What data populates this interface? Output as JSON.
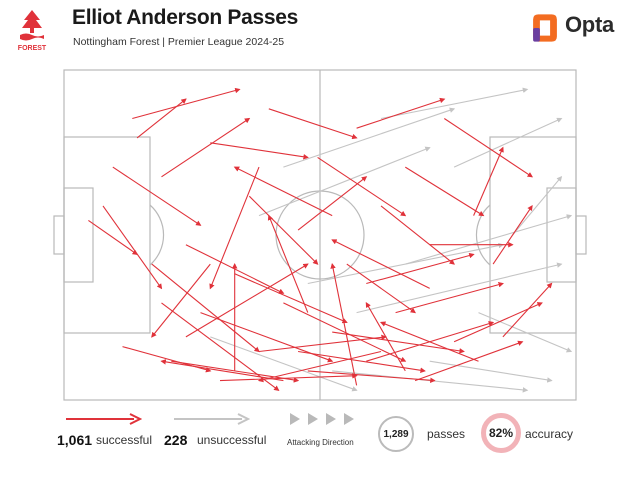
{
  "header": {
    "title": "Elliot Anderson Passes",
    "subtitle": "Nottingham Forest | Premier League 2024-25",
    "brand": "Opta",
    "crest_text": "FOREST"
  },
  "colors": {
    "successful": "#e0323a",
    "unsuccessful": "#c4c4c4",
    "pitch_lines": "#b9b9b9",
    "accuracy_ring": "#f2b3b8",
    "brand_orange": "#f36c21",
    "brand_purple": "#6b3fa0"
  },
  "legend": {
    "successful_count": "1,061",
    "successful_label": "successful",
    "unsuccessful_count": "228",
    "unsuccessful_label": "unsuccessful",
    "direction_label": "Attacking Direction",
    "passes_value": "1,289",
    "passes_label": "passes",
    "accuracy_value": "82%",
    "accuracy_label": "accuracy"
  },
  "chart_data": {
    "type": "pass_map",
    "pitch_length": 105,
    "pitch_width": 68,
    "attacking_direction": "left-to-right",
    "successful": [
      [
        5.0,
        31.0,
        15.0,
        38.0
      ],
      [
        8.0,
        28.0,
        20.0,
        45.0
      ],
      [
        12.0,
        57.0,
        30.0,
        62.0
      ],
      [
        15.0,
        14.0,
        25.0,
        6.0
      ],
      [
        18.0,
        40.0,
        40.0,
        58.0
      ],
      [
        20.0,
        22.0,
        38.0,
        10.0
      ],
      [
        22.0,
        60.0,
        48.0,
        64.0
      ],
      [
        25.0,
        36.0,
        45.0,
        46.0
      ],
      [
        28.0,
        50.0,
        55.0,
        60.0
      ],
      [
        30.0,
        15.0,
        50.0,
        18.0
      ],
      [
        32.0,
        64.0,
        60.0,
        63.0
      ],
      [
        35.0,
        42.0,
        58.0,
        52.0
      ],
      [
        38.0,
        26.0,
        52.0,
        40.0
      ],
      [
        40.0,
        58.0,
        66.0,
        55.0
      ],
      [
        42.0,
        8.0,
        60.0,
        14.0
      ],
      [
        45.0,
        48.0,
        70.0,
        60.0
      ],
      [
        48.0,
        33.0,
        62.0,
        22.0
      ],
      [
        50.0,
        62.0,
        76.0,
        64.0
      ],
      [
        52.0,
        18.0,
        70.0,
        30.0
      ],
      [
        55.0,
        54.0,
        82.0,
        58.0
      ],
      [
        58.0,
        40.0,
        72.0,
        50.0
      ],
      [
        60.0,
        12.0,
        78.0,
        6.0
      ],
      [
        62.0,
        60.0,
        88.0,
        52.0
      ],
      [
        65.0,
        28.0,
        80.0,
        40.0
      ],
      [
        68.0,
        50.0,
        90.0,
        44.0
      ],
      [
        70.0,
        20.0,
        86.0,
        30.0
      ],
      [
        72.0,
        64.0,
        94.0,
        56.0
      ],
      [
        75.0,
        36.0,
        92.0,
        36.0
      ],
      [
        78.0,
        10.0,
        96.0,
        22.0
      ],
      [
        80.0,
        56.0,
        98.0,
        48.0
      ],
      [
        30.0,
        40.0,
        18.0,
        55.0
      ],
      [
        45.0,
        64.0,
        20.0,
        60.0
      ],
      [
        55.0,
        30.0,
        35.0,
        20.0
      ],
      [
        65.0,
        58.0,
        40.0,
        64.0
      ],
      [
        75.0,
        45.0,
        55.0,
        35.0
      ],
      [
        85.0,
        60.0,
        65.0,
        52.0
      ],
      [
        40.0,
        20.0,
        30.0,
        45.0
      ],
      [
        50.0,
        50.0,
        42.0,
        30.0
      ],
      [
        60.0,
        65.0,
        55.0,
        40.0
      ],
      [
        70.0,
        62.0,
        62.0,
        48.0
      ],
      [
        35.0,
        62.0,
        35.0,
        40.0
      ],
      [
        25.0,
        55.0,
        50.0,
        40.0
      ],
      [
        20.0,
        48.0,
        44.0,
        66.0
      ],
      [
        10.0,
        20.0,
        28.0,
        32.0
      ],
      [
        14.0,
        10.0,
        36.0,
        4.0
      ],
      [
        88.0,
        40.0,
        96.0,
        28.0
      ],
      [
        90.0,
        55.0,
        100.0,
        44.0
      ],
      [
        84.0,
        30.0,
        90.0,
        16.0
      ],
      [
        62.0,
        44.0,
        84.0,
        38.0
      ],
      [
        48.0,
        58.0,
        74.0,
        62.0
      ]
    ],
    "unsuccessful": [
      [
        60.0,
        50.0,
        102.0,
        40.0
      ],
      [
        70.0,
        40.0,
        104.0,
        30.0
      ],
      [
        55.0,
        62.0,
        95.0,
        66.0
      ],
      [
        80.0,
        20.0,
        102.0,
        10.0
      ],
      [
        40.0,
        30.0,
        75.0,
        16.0
      ],
      [
        85.0,
        50.0,
        104.0,
        58.0
      ],
      [
        65.0,
        10.0,
        95.0,
        4.0
      ],
      [
        50.0,
        44.0,
        90.0,
        36.0
      ],
      [
        75.0,
        60.0,
        100.0,
        64.0
      ],
      [
        30.0,
        55.0,
        60.0,
        66.0
      ],
      [
        92.0,
        34.0,
        102.0,
        22.0
      ],
      [
        45.0,
        20.0,
        80.0,
        8.0
      ]
    ]
  }
}
